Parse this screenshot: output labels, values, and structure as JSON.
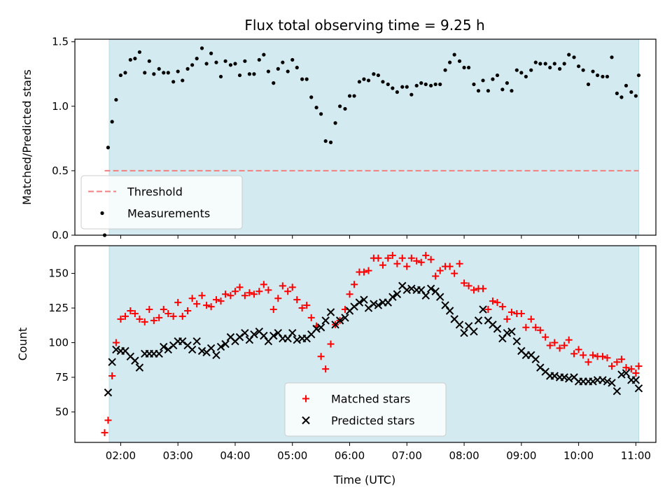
{
  "chart_data": {
    "title": "Flux total observing time = 9.25 h",
    "xlabel": "Time (UTC)",
    "x_ticks": [
      "02:00",
      "03:00",
      "04:00",
      "05:00",
      "06:00",
      "07:00",
      "08:00",
      "09:00",
      "10:00",
      "11:00"
    ],
    "x_tick_values": [
      2,
      3,
      4,
      5,
      6,
      7,
      8,
      9,
      10,
      11
    ],
    "xlim": [
      1.2,
      11.35
    ],
    "shaded_span": [
      1.8,
      11.05
    ],
    "shade_color": "#d3eaf1",
    "panels": [
      {
        "type": "scatter",
        "ylabel": "Matched/Predicted stars",
        "ylim": [
          0,
          1.52
        ],
        "y_ticks": [
          "0.0",
          "0.5",
          "1.0",
          "1.5"
        ],
        "y_tick_values": [
          0,
          0.5,
          1.0,
          1.5
        ],
        "legend_position": "lower-left",
        "threshold": {
          "name": "Threshold",
          "value": 0.5,
          "x_range": [
            1.72,
            11.05
          ],
          "color": "#f08080",
          "style": "dashed"
        },
        "series": [
          {
            "name": "Measurements",
            "marker": "dot",
            "color": "#000000",
            "x": [
              1.72,
              1.78,
              1.85,
              1.92,
              2.0,
              2.08,
              2.17,
              2.25,
              2.33,
              2.42,
              2.5,
              2.58,
              2.67,
              2.75,
              2.83,
              2.92,
              3.0,
              3.08,
              3.17,
              3.25,
              3.33,
              3.42,
              3.5,
              3.58,
              3.67,
              3.75,
              3.83,
              3.92,
              4.0,
              4.08,
              4.17,
              4.25,
              4.33,
              4.42,
              4.5,
              4.58,
              4.67,
              4.75,
              4.83,
              4.92,
              5.0,
              5.08,
              5.17,
              5.25,
              5.33,
              5.42,
              5.5,
              5.58,
              5.67,
              5.75,
              5.83,
              5.92,
              6.0,
              6.08,
              6.17,
              6.25,
              6.33,
              6.42,
              6.5,
              6.58,
              6.67,
              6.75,
              6.83,
              6.92,
              7.0,
              7.08,
              7.17,
              7.25,
              7.33,
              7.42,
              7.5,
              7.58,
              7.67,
              7.75,
              7.83,
              7.92,
              8.0,
              8.08,
              8.17,
              8.25,
              8.33,
              8.42,
              8.5,
              8.58,
              8.67,
              8.75,
              8.83,
              8.92,
              9.0,
              9.08,
              9.17,
              9.25,
              9.33,
              9.42,
              9.5,
              9.58,
              9.67,
              9.75,
              9.83,
              9.92,
              10.0,
              10.08,
              10.17,
              10.25,
              10.33,
              10.42,
              10.5,
              10.58,
              10.67,
              10.75,
              10.83,
              10.92,
              11.0,
              11.05
            ],
            "y": [
              0.0,
              0.68,
              0.88,
              1.05,
              1.24,
              1.26,
              1.36,
              1.37,
              1.42,
              1.26,
              1.35,
              1.25,
              1.29,
              1.26,
              1.26,
              1.19,
              1.27,
              1.2,
              1.29,
              1.32,
              1.37,
              1.45,
              1.33,
              1.41,
              1.34,
              1.23,
              1.35,
              1.32,
              1.33,
              1.24,
              1.35,
              1.25,
              1.25,
              1.36,
              1.4,
              1.27,
              1.18,
              1.29,
              1.34,
              1.27,
              1.36,
              1.3,
              1.21,
              1.21,
              1.07,
              0.99,
              0.94,
              0.73,
              0.72,
              0.87,
              1.0,
              0.98,
              1.08,
              1.08,
              1.19,
              1.21,
              1.2,
              1.25,
              1.24,
              1.19,
              1.17,
              1.14,
              1.11,
              1.15,
              1.15,
              1.09,
              1.16,
              1.18,
              1.17,
              1.16,
              1.17,
              1.17,
              1.28,
              1.34,
              1.4,
              1.35,
              1.3,
              1.3,
              1.17,
              1.12,
              1.2,
              1.12,
              1.21,
              1.24,
              1.13,
              1.18,
              1.12,
              1.28,
              1.26,
              1.23,
              1.28,
              1.34,
              1.33,
              1.33,
              1.3,
              1.33,
              1.29,
              1.33,
              1.4,
              1.38,
              1.31,
              1.28,
              1.17,
              1.27,
              1.24,
              1.23,
              1.23,
              1.38,
              1.1,
              1.07,
              1.16,
              1.11,
              1.08,
              1.24
            ]
          }
        ]
      },
      {
        "type": "scatter",
        "ylabel": "Count",
        "ylim": [
          28,
          170
        ],
        "y_ticks": [
          "50",
          "75",
          "100",
          "125",
          "150"
        ],
        "y_tick_values": [
          50,
          75,
          100,
          125,
          150
        ],
        "legend_position": "lower-center",
        "series": [
          {
            "name": "Matched stars",
            "marker": "plus",
            "color": "#ff0000",
            "x": [
              1.72,
              1.78,
              1.85,
              1.92,
              2.0,
              2.08,
              2.17,
              2.25,
              2.33,
              2.42,
              2.5,
              2.58,
              2.67,
              2.75,
              2.83,
              2.92,
              3.0,
              3.08,
              3.17,
              3.25,
              3.33,
              3.42,
              3.5,
              3.58,
              3.67,
              3.75,
              3.83,
              3.92,
              4.0,
              4.08,
              4.17,
              4.25,
              4.33,
              4.42,
              4.5,
              4.58,
              4.67,
              4.75,
              4.83,
              4.92,
              5.0,
              5.08,
              5.17,
              5.25,
              5.33,
              5.42,
              5.5,
              5.58,
              5.67,
              5.75,
              5.83,
              5.92,
              6.0,
              6.08,
              6.17,
              6.25,
              6.33,
              6.42,
              6.5,
              6.58,
              6.67,
              6.75,
              6.83,
              6.92,
              7.0,
              7.08,
              7.17,
              7.25,
              7.33,
              7.42,
              7.5,
              7.58,
              7.67,
              7.75,
              7.83,
              7.92,
              8.0,
              8.08,
              8.17,
              8.25,
              8.33,
              8.42,
              8.5,
              8.58,
              8.67,
              8.75,
              8.83,
              8.92,
              9.0,
              9.08,
              9.17,
              9.25,
              9.33,
              9.42,
              9.5,
              9.58,
              9.67,
              9.75,
              9.83,
              9.92,
              10.0,
              10.08,
              10.17,
              10.25,
              10.33,
              10.42,
              10.5,
              10.58,
              10.67,
              10.75,
              10.83,
              10.92,
              11.0,
              11.05
            ],
            "y": [
              35,
              44,
              76,
              100,
              117,
              119,
              123,
              121,
              117,
              115,
              124,
              116,
              118,
              124,
              121,
              119,
              129,
              119,
              123,
              132,
              128,
              134,
              127,
              126,
              131,
              130,
              135,
              134,
              137,
              140,
              134,
              136,
              135,
              137,
              142,
              138,
              124,
              132,
              141,
              137,
              140,
              131,
              125,
              127,
              118,
              112,
              90,
              81,
              99,
              113,
              116,
              124,
              135,
              142,
              151,
              151,
              152,
              161,
              161,
              156,
              161,
              163,
              157,
              161,
              155,
              161,
              159,
              158,
              163,
              160,
              148,
              152,
              155,
              155,
              150,
              157,
              143,
              141,
              138,
              139,
              139,
              124,
              130,
              129,
              126,
              117,
              122,
              121,
              121,
              111,
              117,
              111,
              109,
              104,
              98,
              100,
              96,
              98,
              102,
              92,
              95,
              91,
              86,
              91,
              90,
              90,
              89,
              83,
              86,
              88,
              82,
              81,
              78,
              83
            ]
          },
          {
            "name": "Predicted stars",
            "marker": "x",
            "color": "#000000",
            "x": [
              1.78,
              1.85,
              1.92,
              2.0,
              2.08,
              2.17,
              2.25,
              2.33,
              2.42,
              2.5,
              2.58,
              2.67,
              2.75,
              2.83,
              2.92,
              3.0,
              3.08,
              3.17,
              3.25,
              3.33,
              3.42,
              3.5,
              3.58,
              3.67,
              3.75,
              3.83,
              3.92,
              4.0,
              4.08,
              4.17,
              4.25,
              4.33,
              4.42,
              4.5,
              4.58,
              4.67,
              4.75,
              4.83,
              4.92,
              5.0,
              5.08,
              5.17,
              5.25,
              5.33,
              5.42,
              5.5,
              5.58,
              5.67,
              5.75,
              5.83,
              5.92,
              6.0,
              6.08,
              6.17,
              6.25,
              6.33,
              6.42,
              6.5,
              6.58,
              6.67,
              6.75,
              6.83,
              6.92,
              7.0,
              7.08,
              7.17,
              7.25,
              7.33,
              7.42,
              7.5,
              7.58,
              7.67,
              7.75,
              7.83,
              7.92,
              8.0,
              8.08,
              8.17,
              8.25,
              8.33,
              8.42,
              8.5,
              8.58,
              8.67,
              8.75,
              8.83,
              8.92,
              9.0,
              9.08,
              9.17,
              9.25,
              9.33,
              9.42,
              9.5,
              9.58,
              9.67,
              9.75,
              9.83,
              9.92,
              10.0,
              10.08,
              10.17,
              10.25,
              10.33,
              10.42,
              10.5,
              10.58,
              10.67,
              10.75,
              10.83,
              10.92,
              11.0,
              11.05
            ],
            "y": [
              64,
              86,
              95,
              94,
              94,
              90,
              87,
              82,
              92,
              92,
              92,
              92,
              97,
              95,
              98,
              101,
              101,
              98,
              95,
              101,
              94,
              93,
              96,
              91,
              97,
              99,
              104,
              101,
              104,
              107,
              102,
              106,
              108,
              105,
              101,
              105,
              107,
              103,
              103,
              107,
              102,
              103,
              103,
              106,
              110,
              111,
              116,
              122,
              113,
              116,
              118,
              123,
              126,
              129,
              131,
              125,
              128,
              127,
              129,
              129,
              133,
              135,
              141,
              138,
              139,
              138,
              138,
              134,
              139,
              137,
              133,
              127,
              123,
              117,
              113,
              107,
              112,
              108,
              116,
              124,
              116,
              113,
              110,
              103,
              107,
              108,
              101,
              94,
              91,
              91,
              88,
              82,
              79,
              76,
              76,
              75,
              75,
              74,
              75,
              72,
              72,
              72,
              72,
              73,
              73,
              72,
              71,
              65,
              77,
              78,
              73,
              73,
              67
            ]
          }
        ]
      }
    ]
  }
}
